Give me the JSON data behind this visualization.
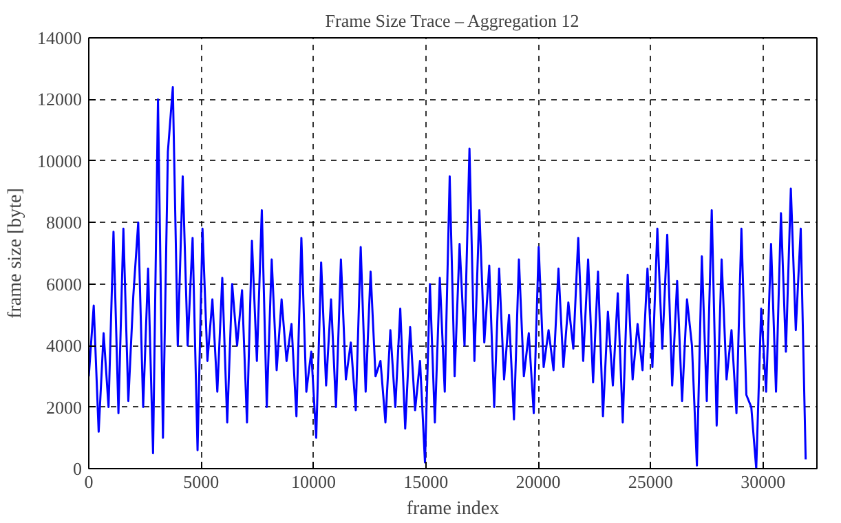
{
  "chart_data": {
    "type": "line",
    "title": "Frame Size Trace – Aggregation 12",
    "xlabel": "frame index",
    "ylabel": "frame size [byte]",
    "xlim": [
      0,
      32400
    ],
    "ylim": [
      0,
      14000
    ],
    "xticks": [
      0,
      5000,
      10000,
      15000,
      20000,
      25000,
      30000
    ],
    "yticks": [
      0,
      2000,
      4000,
      6000,
      8000,
      10000,
      12000,
      14000
    ],
    "grid": true,
    "marker": "none",
    "line_style": "solid",
    "x": [
      0,
      220,
      440,
      660,
      880,
      1100,
      1320,
      1540,
      1760,
      1980,
      2200,
      2420,
      2640,
      2860,
      3080,
      3300,
      3520,
      3740,
      3960,
      4180,
      4400,
      4620,
      4840,
      5060,
      5280,
      5500,
      5720,
      5940,
      6160,
      6380,
      6600,
      6820,
      7040,
      7260,
      7480,
      7700,
      7920,
      8140,
      8360,
      8580,
      8800,
      9020,
      9240,
      9460,
      9680,
      9900,
      10120,
      10340,
      10560,
      10780,
      11000,
      11220,
      11440,
      11660,
      11880,
      12100,
      12320,
      12540,
      12760,
      12980,
      13200,
      13420,
      13640,
      13860,
      14080,
      14300,
      14520,
      14740,
      14960,
      15180,
      15400,
      15620,
      15840,
      16060,
      16280,
      16500,
      16720,
      16940,
      17160,
      17380,
      17600,
      17820,
      18040,
      18260,
      18480,
      18700,
      18920,
      19140,
      19360,
      19580,
      19800,
      20020,
      20240,
      20460,
      20680,
      20900,
      21120,
      21340,
      21560,
      21780,
      22000,
      22220,
      22440,
      22660,
      22880,
      23100,
      23320,
      23540,
      23760,
      23980,
      24200,
      24420,
      24640,
      24860,
      25080,
      25300,
      25520,
      25740,
      25960,
      26180,
      26400,
      26620,
      26840,
      27060,
      27280,
      27500,
      27720,
      27940,
      28160,
      28380,
      28600,
      28820,
      29040,
      29260,
      29480,
      29700,
      29920,
      30140,
      30360,
      30580,
      30800,
      31020,
      31240,
      31460,
      31680,
      31900
    ],
    "series": [
      {
        "color": "#0000ff",
        "values": [
          3000,
          5300,
          1200,
          4400,
          2000,
          7700,
          1800,
          7800,
          2200,
          5600,
          8000,
          2000,
          6500,
          500,
          12000,
          1000,
          10300,
          12400,
          4000,
          9500,
          4000,
          7500,
          600,
          7800,
          3500,
          5500,
          2500,
          6200,
          1500,
          6000,
          4000,
          5800,
          1500,
          7400,
          3500,
          8400,
          2000,
          6800,
          3200,
          5500,
          3500,
          4700,
          1700,
          7500,
          2500,
          3800,
          1000,
          6700,
          2700,
          5500,
          2000,
          6800,
          2900,
          4100,
          1900,
          7200,
          2500,
          6400,
          3000,
          3500,
          1500,
          4500,
          2000,
          5200,
          1300,
          4600,
          1900,
          3500,
          200,
          6000,
          1500,
          6200,
          2500,
          9500,
          3000,
          7300,
          4000,
          10400,
          3500,
          8400,
          4100,
          6600,
          2000,
          6500,
          2900,
          5000,
          1600,
          6800,
          3000,
          4400,
          1800,
          7200,
          3300,
          4500,
          3200,
          6500,
          3300,
          5400,
          3900,
          7500,
          3500,
          6800,
          2800,
          6400,
          1700,
          5100,
          2700,
          5700,
          1500,
          6300,
          2900,
          4700,
          3200,
          6500,
          3300,
          7800,
          3900,
          7600,
          2700,
          6100,
          2200,
          5500,
          4000,
          100,
          6900,
          2200,
          8400,
          1400,
          6800,
          2900,
          4500,
          1800,
          7800,
          2400,
          2000,
          0,
          5200,
          2500,
          7300,
          2500,
          8300,
          3800,
          9100,
          4500,
          7800,
          300
        ]
      }
    ]
  }
}
